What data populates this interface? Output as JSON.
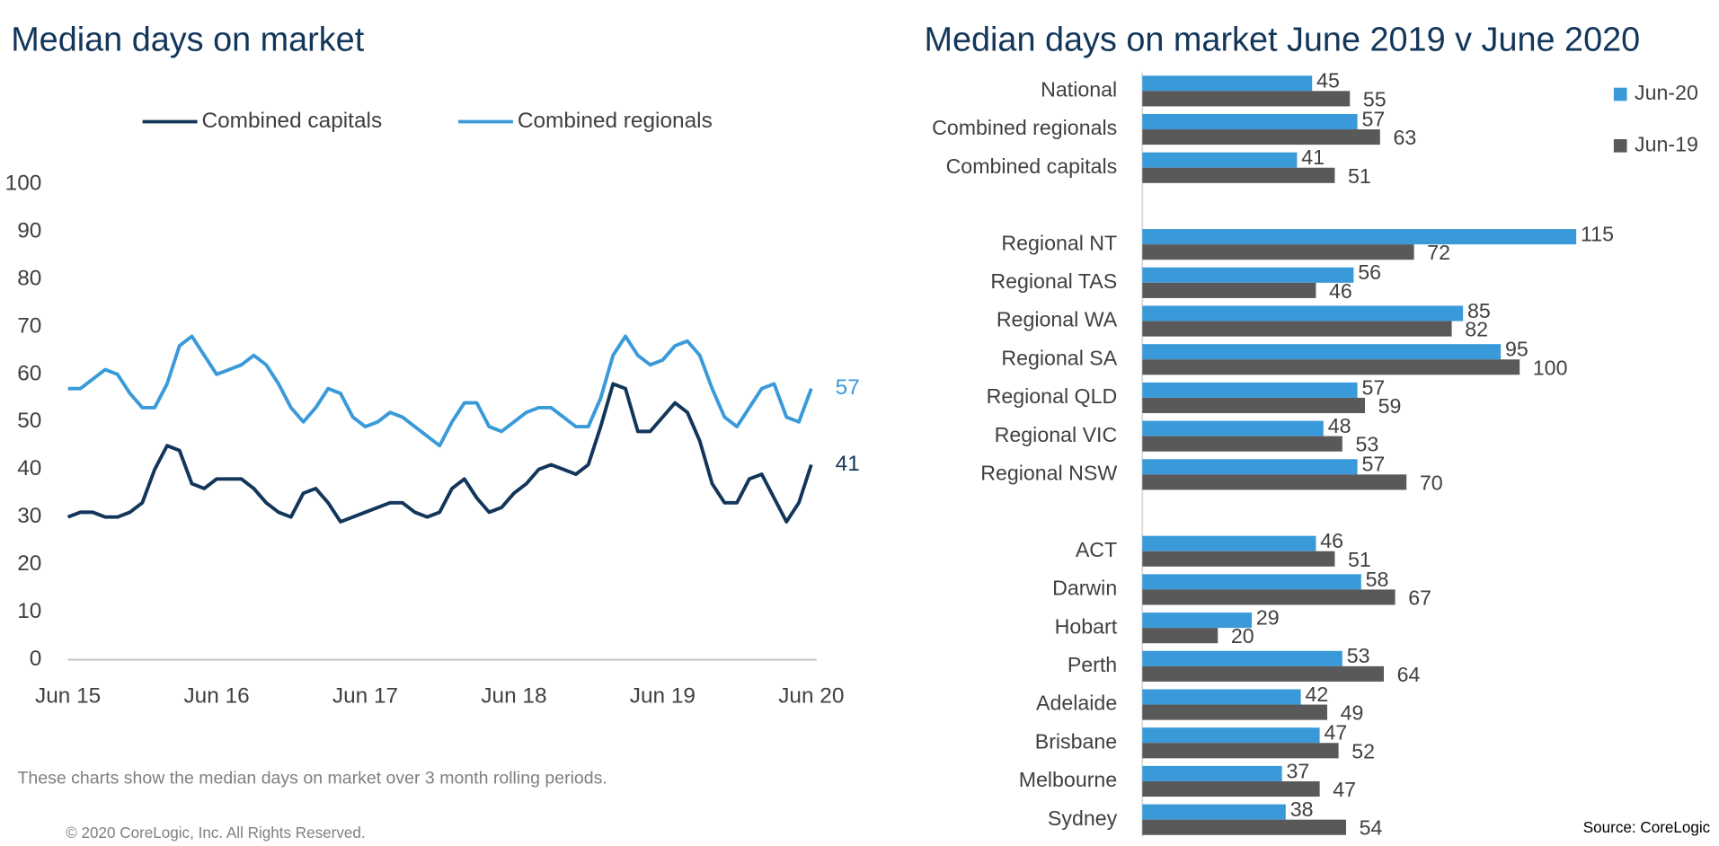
{
  "chart_data": [
    {
      "type": "line",
      "title": "Median days on market",
      "x": [
        "Jun 15",
        null,
        null,
        null,
        null,
        null,
        null,
        null,
        null,
        null,
        null,
        null,
        "Jun 16",
        null,
        null,
        null,
        null,
        null,
        null,
        null,
        null,
        null,
        null,
        null,
        "Jun 17",
        null,
        null,
        null,
        null,
        null,
        null,
        null,
        null,
        null,
        null,
        null,
        "Jun 18",
        null,
        null,
        null,
        null,
        null,
        null,
        null,
        null,
        null,
        null,
        null,
        "Jun 19",
        null,
        null,
        null,
        null,
        null,
        null,
        null,
        null,
        null,
        null,
        null,
        "Jun 20"
      ],
      "series": [
        {
          "name": "Combined capitals",
          "color": "#12365a",
          "values": [
            30,
            31,
            31,
            30,
            30,
            31,
            33,
            40,
            45,
            44,
            37,
            36,
            38,
            38,
            38,
            36,
            33,
            31,
            30,
            35,
            36,
            33,
            29,
            30,
            31,
            32,
            33,
            33,
            31,
            30,
            31,
            36,
            38,
            34,
            31,
            32,
            35,
            37,
            40,
            41,
            40,
            39,
            41,
            49,
            58,
            57,
            48,
            48,
            51,
            54,
            52,
            46,
            37,
            33,
            33,
            38,
            39,
            34,
            29,
            33,
            41
          ]
        },
        {
          "name": "Combined regionals",
          "color": "#3a9ad9",
          "values": [
            57,
            57,
            59,
            61,
            60,
            56,
            53,
            53,
            58,
            66,
            68,
            64,
            60,
            61,
            62,
            64,
            62,
            58,
            53,
            50,
            53,
            57,
            56,
            51,
            49,
            50,
            52,
            51,
            49,
            47,
            45,
            50,
            54,
            54,
            49,
            48,
            50,
            52,
            53,
            53,
            51,
            49,
            49,
            55,
            64,
            68,
            64,
            62,
            63,
            66,
            67,
            64,
            57,
            51,
            49,
            53,
            57,
            58,
            51,
            50,
            57
          ]
        }
      ],
      "ylim": [
        0,
        100
      ],
      "yticks": [
        0,
        10,
        20,
        30,
        40,
        50,
        60,
        70,
        80,
        90,
        100
      ],
      "note": "These charts show the median days on market over 3 month rolling periods.",
      "copyright": "© 2020 CoreLogic,  Inc. All Rights Reserved."
    },
    {
      "type": "hbar",
      "title": "Median days on market June 2019 v June 2020",
      "categories": [
        "National",
        "Combined regionals",
        "Combined capitals",
        null,
        "Regional NT",
        "Regional TAS",
        "Regional WA",
        "Regional SA",
        "Regional QLD",
        "Regional VIC",
        "Regional NSW",
        null,
        "ACT",
        "Darwin",
        "Hobart",
        "Perth",
        "Adelaide",
        "Brisbane",
        "Melbourne",
        "Sydney"
      ],
      "series": [
        {
          "name": "Jun-20",
          "color": "#3a9ad9",
          "values": [
            45,
            57,
            41,
            null,
            115,
            56,
            85,
            95,
            57,
            48,
            57,
            null,
            46,
            58,
            29,
            53,
            42,
            47,
            37,
            38
          ]
        },
        {
          "name": "Jun-19",
          "color": "#595959",
          "values": [
            55,
            63,
            51,
            null,
            72,
            46,
            82,
            100,
            59,
            53,
            70,
            null,
            51,
            67,
            20,
            64,
            49,
            52,
            47,
            54
          ]
        }
      ],
      "xlim": [
        0,
        120
      ],
      "source": "Source: CoreLogic"
    }
  ]
}
